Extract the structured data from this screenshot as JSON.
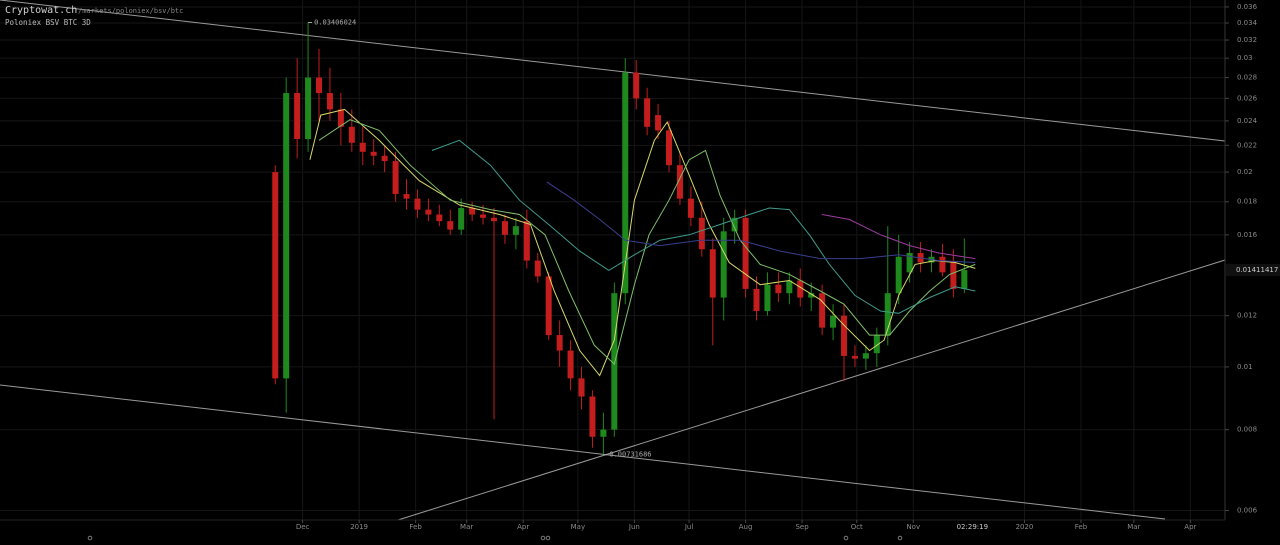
{
  "header": {
    "title": "Cryptowat.ch",
    "url": "/markets/poloniex/bsv/btc",
    "subtitle": "Poloniex BSV BTC 3D"
  },
  "chart_data": {
    "type": "candlestick",
    "yscale": "log",
    "grid": true,
    "up_color": "#1e8a1e",
    "down_color": "#c41d1d",
    "xlim": [
      -166,
      506
    ],
    "ylim": [
      0.0058,
      0.0369
    ],
    "xticks": [
      {
        "value": 0,
        "label": "Dec"
      },
      {
        "value": 31,
        "label": "2019"
      },
      {
        "value": 62,
        "label": "Feb"
      },
      {
        "value": 90,
        "label": "Mar"
      },
      {
        "value": 121,
        "label": "Apr"
      },
      {
        "value": 151,
        "label": "May"
      },
      {
        "value": 182,
        "label": "Jun"
      },
      {
        "value": 212,
        "label": "Jul"
      },
      {
        "value": 243,
        "label": "Aug"
      },
      {
        "value": 274,
        "label": "Sep"
      },
      {
        "value": 304,
        "label": "Oct"
      },
      {
        "value": 335,
        "label": "Nov"
      },
      {
        "value": 396,
        "label": "2020"
      },
      {
        "value": 427,
        "label": "Feb"
      },
      {
        "value": 456,
        "label": "Mar"
      },
      {
        "value": 487,
        "label": "Apr"
      }
    ],
    "yticks": [
      0.006,
      0.008,
      0.01,
      0.012,
      0.016,
      0.018,
      0.02,
      0.022,
      0.024,
      0.026,
      0.028,
      0.03,
      0.032,
      0.034,
      0.036
    ],
    "countdown": "02:29:19",
    "x": [
      -15,
      -9,
      -3,
      3,
      9,
      15,
      21,
      27,
      33,
      39,
      45,
      51,
      57,
      63,
      69,
      75,
      81,
      87,
      93,
      99,
      105,
      111,
      117,
      123,
      129,
      135,
      141,
      147,
      153,
      159,
      165,
      171,
      177,
      183,
      189,
      195,
      201,
      207,
      213,
      219,
      225,
      231,
      237,
      243,
      249,
      255,
      261,
      267,
      273,
      279,
      285,
      291,
      297,
      303,
      309,
      315,
      321,
      327,
      333,
      339,
      345,
      351,
      357,
      363
    ],
    "open": [
      0.02,
      0.0096,
      0.0265,
      0.0225,
      0.028,
      0.0265,
      0.025,
      0.0235,
      0.0222,
      0.0215,
      0.0212,
      0.0208,
      0.0185,
      0.0182,
      0.0175,
      0.0172,
      0.0168,
      0.0163,
      0.0176,
      0.0172,
      0.017,
      0.0168,
      0.016,
      0.0168,
      0.0146,
      0.0138,
      0.0112,
      0.0106,
      0.0096,
      0.009,
      0.0078,
      0.008,
      0.013,
      0.0285,
      0.026,
      0.0245,
      0.0232,
      0.0205,
      0.0182,
      0.017,
      0.0152,
      0.0128,
      0.0162,
      0.017,
      0.0132,
      0.0122,
      0.0134,
      0.013,
      0.0136,
      0.0128,
      0.013,
      0.0115,
      0.012,
      0.0104,
      0.0103,
      0.0105,
      0.0112,
      0.013,
      0.014,
      0.015,
      0.0145,
      0.0148,
      0.0145,
      0.0132
    ],
    "high": [
      0.0205,
      0.028,
      0.03,
      0.03406024,
      0.031,
      0.029,
      0.0265,
      0.025,
      0.0235,
      0.0225,
      0.022,
      0.0215,
      0.0195,
      0.0188,
      0.0182,
      0.0178,
      0.0175,
      0.0182,
      0.018,
      0.0178,
      0.0176,
      0.0172,
      0.017,
      0.0175,
      0.015,
      0.014,
      0.0118,
      0.011,
      0.01,
      0.0092,
      0.0085,
      0.0135,
      0.03,
      0.0298,
      0.027,
      0.0255,
      0.024,
      0.0215,
      0.019,
      0.018,
      0.0158,
      0.017,
      0.0175,
      0.0175,
      0.0138,
      0.014,
      0.014,
      0.014,
      0.0142,
      0.0135,
      0.0134,
      0.0125,
      0.0125,
      0.0108,
      0.0108,
      0.0115,
      0.0165,
      0.016,
      0.0156,
      0.0156,
      0.0152,
      0.0155,
      0.0152,
      0.0158
    ],
    "low": [
      0.0094,
      0.0085,
      0.021,
      0.0215,
      0.024,
      0.024,
      0.022,
      0.0215,
      0.0205,
      0.0205,
      0.02,
      0.018,
      0.0175,
      0.017,
      0.0168,
      0.0165,
      0.016,
      0.016,
      0.0168,
      0.0166,
      0.0083,
      0.0155,
      0.0152,
      0.0142,
      0.0135,
      0.011,
      0.01,
      0.0092,
      0.0086,
      0.0075,
      0.00731686,
      0.0078,
      0.0125,
      0.025,
      0.0228,
      0.0225,
      0.02,
      0.0178,
      0.0165,
      0.0148,
      0.0108,
      0.0118,
      0.0155,
      0.0128,
      0.0118,
      0.012,
      0.0126,
      0.0125,
      0.0124,
      0.0122,
      0.0112,
      0.011,
      0.0095,
      0.01,
      0.0099,
      0.01,
      0.0108,
      0.0125,
      0.0135,
      0.014,
      0.014,
      0.0138,
      0.0128,
      0.013
    ],
    "close": [
      0.0096,
      0.0265,
      0.0225,
      0.028,
      0.0265,
      0.025,
      0.0235,
      0.0222,
      0.0215,
      0.0212,
      0.0208,
      0.0185,
      0.0182,
      0.0175,
      0.0172,
      0.0168,
      0.0163,
      0.0176,
      0.0172,
      0.017,
      0.0168,
      0.016,
      0.0165,
      0.0146,
      0.0138,
      0.0112,
      0.0106,
      0.0096,
      0.009,
      0.0078,
      0.008,
      0.013,
      0.0285,
      0.026,
      0.0235,
      0.0232,
      0.0205,
      0.0182,
      0.017,
      0.0152,
      0.0128,
      0.0162,
      0.017,
      0.0132,
      0.0122,
      0.0134,
      0.013,
      0.0136,
      0.0128,
      0.013,
      0.0115,
      0.012,
      0.0104,
      0.0103,
      0.0105,
      0.0112,
      0.013,
      0.0148,
      0.015,
      0.0145,
      0.0148,
      0.014,
      0.0132,
      0.01411417
    ],
    "lines": [
      {
        "color": "#d8d86a",
        "x": [
          4,
          10,
          23,
          42,
          64,
          86,
          108,
          125,
          138,
          152,
          163,
          171,
          182,
          193,
          200,
          212,
          223,
          234,
          251,
          267,
          284,
          297,
          311,
          319,
          327,
          336,
          347,
          358,
          369
        ],
        "values": [
          0.0209,
          0.0245,
          0.025,
          0.0224,
          0.0194,
          0.0178,
          0.0172,
          0.0166,
          0.0131,
          0.0106,
          0.0097,
          0.011,
          0.0181,
          0.0224,
          0.0239,
          0.0198,
          0.0166,
          0.0145,
          0.0134,
          0.0136,
          0.0127,
          0.0116,
          0.0106,
          0.011,
          0.0129,
          0.0144,
          0.0146,
          0.0145,
          0.0142
        ]
      },
      {
        "color": "#7fc06a",
        "x": [
          9,
          26,
          42,
          59,
          81,
          103,
          119,
          133,
          146,
          160,
          171,
          182,
          190,
          201,
          212,
          221,
          229,
          240,
          251,
          267,
          284,
          297,
          311,
          322,
          333,
          344,
          355,
          369
        ],
        "values": [
          0.0224,
          0.0241,
          0.0232,
          0.0205,
          0.0181,
          0.0175,
          0.0172,
          0.016,
          0.0131,
          0.0108,
          0.0101,
          0.0134,
          0.016,
          0.0181,
          0.0209,
          0.0216,
          0.0184,
          0.0157,
          0.0144,
          0.0139,
          0.0131,
          0.0125,
          0.0112,
          0.0112,
          0.0122,
          0.0131,
          0.0139,
          0.0144
        ]
      },
      {
        "color": "#3f9a8c",
        "x": [
          71,
          86,
          103,
          119,
          135,
          152,
          168,
          182,
          196,
          212,
          229,
          245,
          256,
          267,
          278,
          289,
          303,
          317,
          327,
          344,
          358,
          369
        ],
        "values": [
          0.0216,
          0.0224,
          0.0205,
          0.0181,
          0.0166,
          0.0151,
          0.0141,
          0.0149,
          0.0157,
          0.016,
          0.0166,
          0.0172,
          0.0176,
          0.0175,
          0.016,
          0.0144,
          0.0129,
          0.0122,
          0.0121,
          0.0128,
          0.0133,
          0.0131
        ]
      },
      {
        "color": "#3a3f8f",
        "x": [
          134,
          149,
          163,
          177,
          196,
          218,
          240,
          262,
          284,
          306,
          327,
          349,
          369
        ],
        "values": [
          0.0193,
          0.0181,
          0.0169,
          0.0157,
          0.0154,
          0.0157,
          0.0157,
          0.0151,
          0.0147,
          0.0147,
          0.0149,
          0.0146,
          0.0145
        ]
      },
      {
        "color": "#a03aa0",
        "x": [
          285,
          300,
          317,
          333,
          349,
          369
        ],
        "values": [
          0.0172,
          0.0169,
          0.016,
          0.0154,
          0.015,
          0.0147
        ]
      }
    ]
  }
}
